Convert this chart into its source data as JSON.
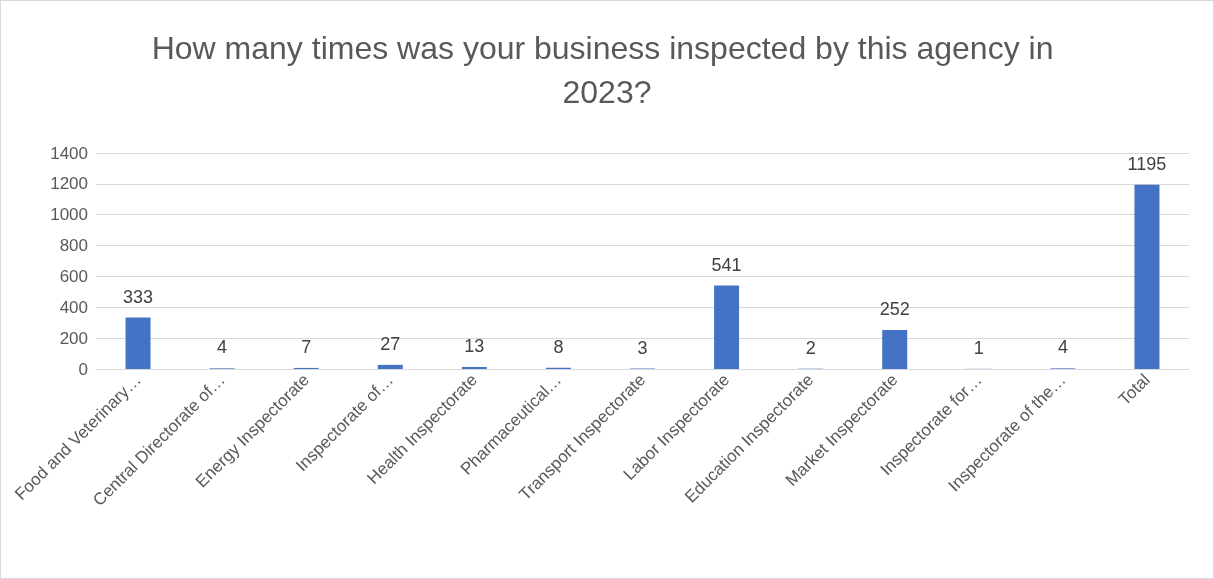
{
  "chart_data": {
    "type": "bar",
    "title": "How many times was your business inspected by this agency in 2023?",
    "categories": [
      "Food and Veterinary…",
      "Central Directorate of…",
      "Energy Inspectorate",
      "Inspectorate of…",
      "Health Inspectorate",
      "Pharmaceutical…",
      "Transport Inspectorate",
      "Labor Inspectorate",
      "Education Inspectorate",
      "Market Inspectorate",
      "Inspectorate for…",
      "Inspectorate of the…",
      "Total"
    ],
    "values": [
      333,
      4,
      7,
      27,
      13,
      8,
      3,
      541,
      2,
      252,
      1,
      4,
      1195
    ],
    "color": "#4472c4",
    "ylim": [
      0,
      1400
    ],
    "yticks": [
      0,
      200,
      400,
      600,
      800,
      1000,
      1200,
      1400
    ],
    "grid": "y",
    "data_labels": true
  }
}
